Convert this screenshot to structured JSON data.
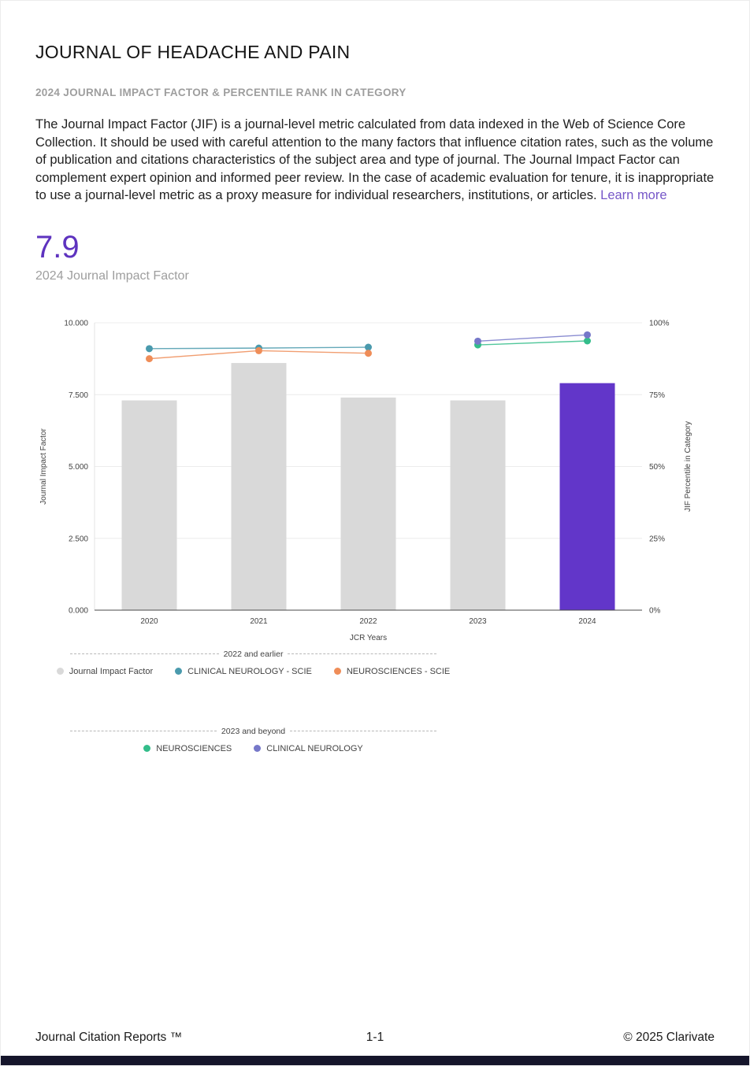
{
  "page": {
    "title": "JOURNAL OF HEADACHE AND PAIN",
    "subtitle": "2024 JOURNAL IMPACT FACTOR & PERCENTILE RANK IN CATEGORY",
    "description": "The Journal Impact Factor (JIF) is a journal-level metric calculated from data indexed in the Web of Science Core Collection. It should be used with careful attention to the many factors that influence citation rates, such as the volume of publication and citations characteristics of the subject area and type of journal. The Journal Impact Factor can complement expert opinion and informed peer review. In the case of academic evaluation for tenure, it is inappropriate to use a journal-level metric as a proxy measure for individual researchers, institutions, or articles.",
    "learn_more_label": "Learn more"
  },
  "metric": {
    "value": "7.9",
    "label": "2024 Journal Impact Factor"
  },
  "chart_data": {
    "type": "bar+line",
    "title": "",
    "categories": [
      "2020",
      "2021",
      "2022",
      "2023",
      "2024"
    ],
    "xlabel": "JCR Years",
    "left_axis": {
      "label": "Journal Impact Factor",
      "min": 0,
      "max": 10,
      "ticks": [
        "0.000",
        "2.500",
        "5.000",
        "7.500",
        "10.000"
      ]
    },
    "right_axis": {
      "label": "JIF Percentile in Category",
      "min": 0,
      "max": 100,
      "ticks": [
        "0%",
        "25%",
        "50%",
        "75%",
        "100%"
      ]
    },
    "bars": {
      "name": "Journal Impact Factor",
      "values": [
        7.3,
        8.6,
        7.4,
        7.3,
        7.9
      ],
      "color_default": "#d9d9d9",
      "color_highlight": "#6236c9",
      "highlight_index": 4
    },
    "line_series": [
      {
        "name": "CLINICAL NEUROLOGY - SCIE",
        "color": "#4a9aad",
        "points": [
          [
            0,
            91.0
          ],
          [
            1,
            91.2
          ],
          [
            2,
            91.5
          ]
        ]
      },
      {
        "name": "NEUROSCIENCES - SCIE",
        "color": "#ef8d58",
        "points": [
          [
            0,
            87.5
          ],
          [
            1,
            90.3
          ],
          [
            2,
            89.4
          ]
        ]
      },
      {
        "name": "NEUROSCIENCES",
        "color": "#33bd8a",
        "points": [
          [
            3,
            92.3
          ],
          [
            4,
            93.7
          ]
        ]
      },
      {
        "name": "CLINICAL NEUROLOGY",
        "color": "#7678c9",
        "points": [
          [
            3,
            93.6
          ],
          [
            4,
            95.8
          ]
        ]
      }
    ],
    "legend_groups": [
      {
        "title": "2022 and earlier",
        "items": [
          {
            "label": "Journal Impact Factor",
            "color": "#d9d9d9"
          },
          {
            "label": "CLINICAL NEUROLOGY - SCIE",
            "color": "#4a9aad"
          },
          {
            "label": "NEUROSCIENCES - SCIE",
            "color": "#ef8d58"
          }
        ]
      },
      {
        "title": "2023 and beyond",
        "items": [
          {
            "label": "NEUROSCIENCES",
            "color": "#33bd8a"
          },
          {
            "label": "CLINICAL NEUROLOGY",
            "color": "#7678c9"
          }
        ]
      }
    ]
  },
  "footer": {
    "left": "Journal Citation Reports ™",
    "center": "1-1",
    "right": "© 2025 Clarivate"
  }
}
